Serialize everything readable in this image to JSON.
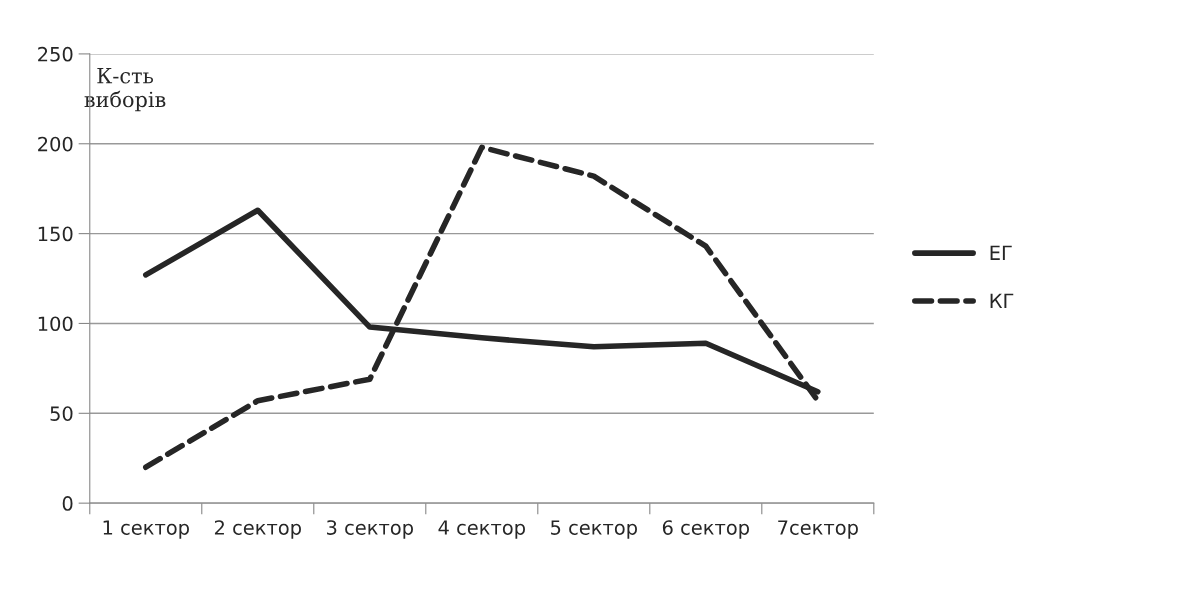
{
  "chart_data": {
    "type": "line",
    "ylabel": "К-сть\nвиборів",
    "categories": [
      "1 сектор",
      "2 сектор",
      "3 сектор",
      "4 сектор",
      "5 сектор",
      "6 сектор",
      "7сектор"
    ],
    "series": [
      {
        "name": "ЕГ",
        "color": "#262626",
        "line_style": "solid",
        "values": [
          127,
          163,
          98,
          92,
          87,
          89,
          62
        ]
      },
      {
        "name": "КГ",
        "color": "#262626",
        "line_style": "dashed",
        "values": [
          20,
          57,
          69,
          198,
          182,
          143,
          57
        ]
      }
    ],
    "ylim": [
      0,
      250
    ],
    "yticks": [
      0,
      50,
      100,
      150,
      200,
      250
    ],
    "grid": "y",
    "legend": "right",
    "marker": "none"
  }
}
